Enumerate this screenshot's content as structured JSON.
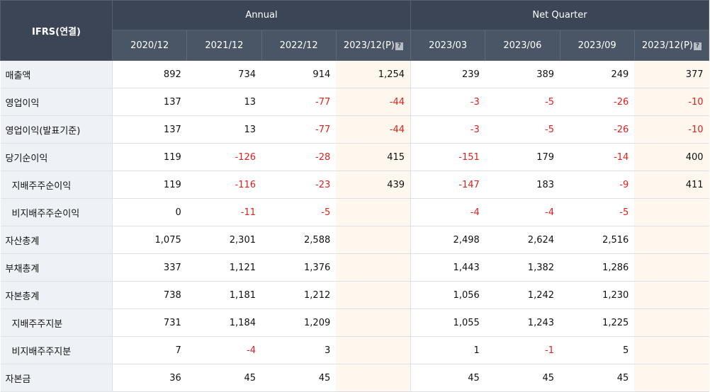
{
  "header": {
    "corner": "IFRS(연결)",
    "group_annual": "Annual",
    "group_quarter": "Net Quarter",
    "periods": [
      "2020/12",
      "2021/12",
      "2022/12",
      "2023/12(P)",
      "2023/03",
      "2023/06",
      "2023/09",
      "2023/12(P)"
    ],
    "provisional_icon": "?"
  },
  "rows": [
    {
      "label": "매출액",
      "values": [
        "892",
        "734",
        "914",
        "1,254",
        "239",
        "389",
        "249",
        "377"
      ]
    },
    {
      "label": "영업이익",
      "values": [
        "137",
        "13",
        "-77",
        "-44",
        "-3",
        "-5",
        "-26",
        "-10"
      ]
    },
    {
      "label": "영업이익(발표기준)",
      "values": [
        "137",
        "13",
        "-77",
        "-44",
        "-3",
        "-5",
        "-26",
        "-10"
      ]
    },
    {
      "label": "당기순이익",
      "values": [
        "119",
        "-126",
        "-28",
        "415",
        "-151",
        "179",
        "-14",
        "400"
      ]
    },
    {
      "label": "지배주주순이익",
      "values": [
        "119",
        "-116",
        "-23",
        "439",
        "-147",
        "183",
        "-9",
        "411"
      ]
    },
    {
      "label": "비지배주주순이익",
      "values": [
        "0",
        "-11",
        "-5",
        "",
        "-4",
        "-4",
        "-5",
        ""
      ]
    },
    {
      "label": "자산총계",
      "values": [
        "1,075",
        "2,301",
        "2,588",
        "",
        "2,498",
        "2,624",
        "2,516",
        ""
      ]
    },
    {
      "label": "부채총계",
      "values": [
        "337",
        "1,121",
        "1,376",
        "",
        "1,443",
        "1,382",
        "1,286",
        ""
      ]
    },
    {
      "label": "자본총계",
      "values": [
        "738",
        "1,181",
        "1,212",
        "",
        "1,056",
        "1,242",
        "1,230",
        ""
      ]
    },
    {
      "label": "지배주주지분",
      "values": [
        "731",
        "1,184",
        "1,209",
        "",
        "1,055",
        "1,243",
        "1,225",
        ""
      ]
    },
    {
      "label": "비지배주주지분",
      "values": [
        "7",
        "-4",
        "3",
        "",
        "1",
        "-1",
        "5",
        ""
      ]
    },
    {
      "label": "자본금",
      "values": [
        "36",
        "45",
        "45",
        "",
        "45",
        "45",
        "45",
        ""
      ]
    }
  ],
  "colors": {
    "header_bg": "#3b4555",
    "label_bg": "#eef1f6",
    "provisional_bg": "#fdf7ee",
    "negative": "#e0201c"
  }
}
